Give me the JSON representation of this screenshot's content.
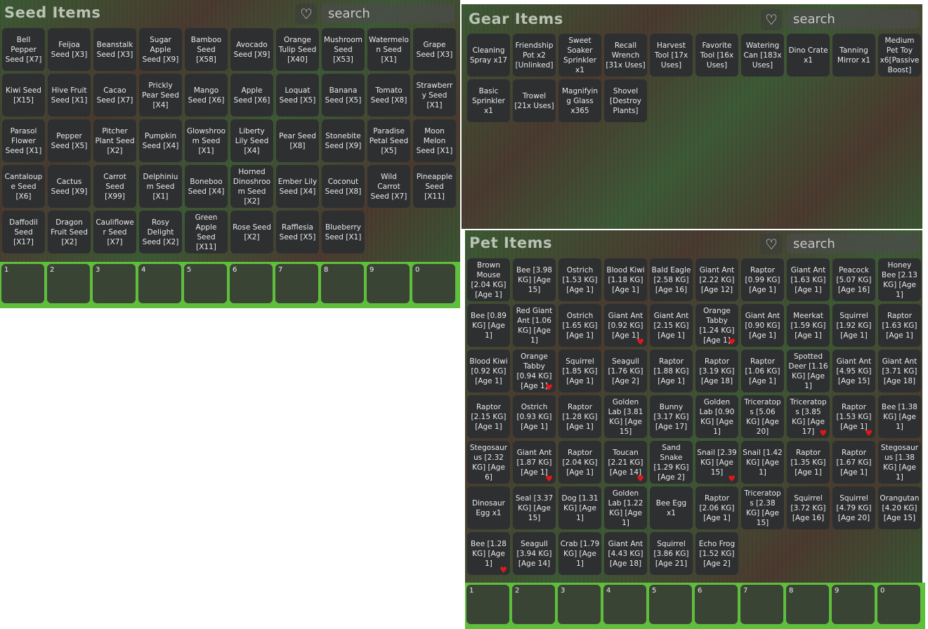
{
  "seed_panel": {
    "title": "Seed Items",
    "search_placeholder": "search",
    "items": [
      "Bell Pepper Seed [X7]",
      "Feijoa Seed [X3]",
      "Beanstalk Seed [X3]",
      "Sugar Apple Seed [X9]",
      "Bamboo Seed [X58]",
      "Avocado Seed [X9]",
      "Orange Tulip Seed [X40]",
      "Mushroom Seed [X53]",
      "Watermelon Seed [X1]",
      "Grape Seed [X3]",
      "Kiwi Seed [X15]",
      "Hive Fruit Seed [X1]",
      "Cacao Seed [X7]",
      "Prickly Pear Seed [X4]",
      "Mango Seed [X6]",
      "Apple Seed [X6]",
      "Loquat Seed [X5]",
      "Banana Seed [X5]",
      "Tomato Seed [X8]",
      "Strawberry Seed [X1]",
      "Parasol Flower Seed [X1]",
      "Pepper Seed [X5]",
      "Pitcher Plant Seed [X2]",
      "Pumpkin Seed [X4]",
      "Glowshroom Seed [X1]",
      "Liberty Lily Seed [X4]",
      "Pear Seed [X8]",
      "Stonebite Seed [X9]",
      "Paradise Petal Seed [X5]",
      "Moon Melon Seed [X1]",
      "Cantaloupe Seed [X6]",
      "Cactus Seed [X9]",
      "Carrot Seed [X99]",
      "Delphinium Seed [X1]",
      "Boneboo Seed [X4]",
      "Horned Dinoshroom Seed [X2]",
      "Ember Lily Seed [X4]",
      "Coconut Seed [X8]",
      "Wild Carrot Seed [X7]",
      "Pineapple Seed [X11]",
      "Daffodil Seed [X17]",
      "Dragon Fruit Seed [X2]",
      "Cauliflower Seed [X7]",
      "Rosy Delight Seed [X2]",
      "Green Apple Seed [X11]",
      "Rose Seed [X2]",
      "Rafflesia Seed [X5]",
      "Blueberry Seed [X1]"
    ]
  },
  "gear_panel": {
    "title": "Gear Items",
    "search_placeholder": "search",
    "items": [
      "Cleaning Spray x17",
      "Friendship Pot x2 [Unlinked]",
      "Sweet Soaker Sprinkler x1",
      "Recall Wrench [31x Uses]",
      "Harvest Tool [17x Uses]",
      "Favorite Tool [16x Uses]",
      "Watering Can [183x Uses]",
      "Dino Crate x1",
      "Tanning Mirror x1",
      "Medium Pet Toy x6[Passive Boost]",
      "Basic Sprinkler x1",
      "Trowel [21x Uses]",
      "Magnifying Glass x365",
      "Shovel [Destroy Plants]"
    ]
  },
  "pet_panel": {
    "title": "Pet Items",
    "search_placeholder": "search",
    "items": [
      {
        "text": "Brown Mouse [2.04 KG] [Age 1]",
        "fav": false
      },
      {
        "text": "Bee [3.98 KG] [Age 15]",
        "fav": false
      },
      {
        "text": "Ostrich [1.53 KG] [Age 1]",
        "fav": false
      },
      {
        "text": "Blood Kiwi [1.18 KG] [Age 1]",
        "fav": false
      },
      {
        "text": "Bald Eagle [2.58 KG] [Age 16]",
        "fav": false
      },
      {
        "text": "Giant Ant [2.22 KG] [Age 12]",
        "fav": false
      },
      {
        "text": "Raptor [0.99 KG] [Age 1]",
        "fav": false
      },
      {
        "text": "Giant Ant [1.63 KG] [Age 1]",
        "fav": false
      },
      {
        "text": "Peacock [5.07 KG] [Age 16]",
        "fav": false
      },
      {
        "text": "Honey Bee [2.13 KG] [Age 1]",
        "fav": false
      },
      {
        "text": "Bee [0.89 KG] [Age 1]",
        "fav": false
      },
      {
        "text": "Red Giant Ant [1.06 KG] [Age 1]",
        "fav": false
      },
      {
        "text": "Ostrich [1.65 KG] [Age 1]",
        "fav": false
      },
      {
        "text": "Giant Ant [0.92 KG] [Age 1]",
        "fav": true
      },
      {
        "text": "Giant Ant [2.15 KG] [Age 1]",
        "fav": false
      },
      {
        "text": "Orange Tabby [1.24 KG] [Age 1]",
        "fav": true
      },
      {
        "text": "Giant Ant [0.90 KG] [Age 1]",
        "fav": false
      },
      {
        "text": "Meerkat [1.59 KG] [Age 1]",
        "fav": false
      },
      {
        "text": "Squirrel [1.92 KG] [Age 1]",
        "fav": false
      },
      {
        "text": "Raptor [1.63 KG] [Age 1]",
        "fav": false
      },
      {
        "text": "Blood Kiwi [0.92 KG] [Age 1]",
        "fav": false
      },
      {
        "text": "Orange Tabby [0.94 KG] [Age 1]",
        "fav": true
      },
      {
        "text": "Squirrel [1.85 KG] [Age 1]",
        "fav": false
      },
      {
        "text": "Seagull [1.76 KG] [Age 2]",
        "fav": false
      },
      {
        "text": "Raptor [1.88 KG] [Age 1]",
        "fav": false
      },
      {
        "text": "Raptor [3.19 KG] [Age 18]",
        "fav": false
      },
      {
        "text": "Raptor [1.06 KG] [Age 1]",
        "fav": false
      },
      {
        "text": "Spotted Deer [1.16 KG] [Age 1]",
        "fav": false
      },
      {
        "text": "Giant Ant [4.95 KG] [Age 15]",
        "fav": false
      },
      {
        "text": "Giant Ant [3.71 KG] [Age 18]",
        "fav": false
      },
      {
        "text": "Raptor [2.15 KG] [Age 1]",
        "fav": false
      },
      {
        "text": "Ostrich [0.93 KG] [Age 1]",
        "fav": false
      },
      {
        "text": "Raptor [1.28 KG] [Age 1]",
        "fav": false
      },
      {
        "text": "Golden Lab [3.81 KG] [Age 15]",
        "fav": false
      },
      {
        "text": "Bunny [3.17 KG] [Age 17]",
        "fav": false
      },
      {
        "text": "Golden Lab [0.90 KG] [Age 1]",
        "fav": false
      },
      {
        "text": "Triceratops [5.06 KG] [Age 20]",
        "fav": false
      },
      {
        "text": "Triceratops [3.85 KG] [Age 17]",
        "fav": true
      },
      {
        "text": "Raptor [1.53 KG] [Age 1]",
        "fav": true
      },
      {
        "text": "Bee [1.38 KG] [Age 1]",
        "fav": false
      },
      {
        "text": "Stegosaurus [2.32 KG] [Age 6]",
        "fav": false
      },
      {
        "text": "Giant Ant [1.87 KG] [Age 1]",
        "fav": true
      },
      {
        "text": "Raptor [2.04 KG] [Age 1]",
        "fav": false
      },
      {
        "text": "Toucan [2.21 KG] [Age 14]",
        "fav": true
      },
      {
        "text": "Sand Snake [1.29 KG] [Age 2]",
        "fav": false
      },
      {
        "text": "Snail [2.39 KG] [Age 15]",
        "fav": true
      },
      {
        "text": "Snail [1.42 KG] [Age 1]",
        "fav": false
      },
      {
        "text": "Raptor [1.35 KG] [Age 1]",
        "fav": false
      },
      {
        "text": "Raptor [1.67 KG] [Age 1]",
        "fav": false
      },
      {
        "text": "Stegosaurus [1.38 KG] [Age 1]",
        "fav": false
      },
      {
        "text": "Dinosaur Egg x1",
        "fav": false
      },
      {
        "text": "Seal [3.37 KG] [Age 15]",
        "fav": false
      },
      {
        "text": "Dog [1.31 KG] [Age 1]",
        "fav": false
      },
      {
        "text": "Golden Lab [1.22 KG] [Age 1]",
        "fav": false
      },
      {
        "text": "Bee Egg x1",
        "fav": false
      },
      {
        "text": "Raptor [2.06 KG] [Age 1]",
        "fav": false
      },
      {
        "text": "Triceratops [2.38 KG] [Age 15]",
        "fav": false
      },
      {
        "text": "Squirrel [3.72 KG] [Age 16]",
        "fav": false
      },
      {
        "text": "Squirrel [4.79 KG] [Age 20]",
        "fav": false
      },
      {
        "text": "Orangutan [4.20 KG] [Age 15]",
        "fav": false
      },
      {
        "text": "Bee [1.28 KG] [Age 1]",
        "fav": true
      },
      {
        "text": "Seagull [3.94 KG] [Age 14]",
        "fav": false
      },
      {
        "text": "Crab [1.79 KG] [Age 1]",
        "fav": false
      },
      {
        "text": "Giant Ant [4.43 KG] [Age 18]",
        "fav": false
      },
      {
        "text": "Squirrel [3.86 KG] [Age 21]",
        "fav": false
      },
      {
        "text": "Echo Frog [1.52 KG] [Age 2]",
        "fav": false
      }
    ]
  },
  "hotbar": [
    "1",
    "2",
    "3",
    "4",
    "5",
    "6",
    "7",
    "8",
    "9",
    "0"
  ],
  "icons": {
    "favorite_filter": "heart-outline-icon",
    "favorited": "heart-filled-icon"
  },
  "colors": {
    "cell_bg": "#2e2f31",
    "hotbar_green": "#5fbf3c",
    "favorite_heart": "#e01818"
  }
}
